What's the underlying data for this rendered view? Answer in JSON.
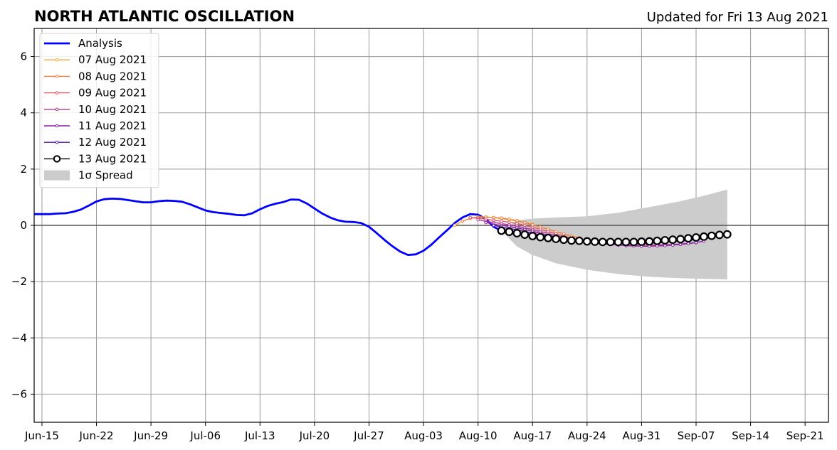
{
  "chart_data": {
    "type": "line",
    "title": "NORTH ATLANTIC OSCILLATION",
    "subtitle": "Updated for Fri 13 Aug 2021",
    "xlabel": "",
    "ylabel": "",
    "x_range": [
      "2021-06-14",
      "2021-09-24"
    ],
    "ylim": [
      -7,
      7
    ],
    "grid": true,
    "legend_position": "top-left",
    "x_ticks": [
      {
        "date": "2021-06-15",
        "label": "Jun-15"
      },
      {
        "date": "2021-06-22",
        "label": "Jun-22"
      },
      {
        "date": "2021-06-29",
        "label": "Jun-29"
      },
      {
        "date": "2021-07-06",
        "label": "Jul-06"
      },
      {
        "date": "2021-07-13",
        "label": "Jul-13"
      },
      {
        "date": "2021-07-20",
        "label": "Jul-20"
      },
      {
        "date": "2021-07-27",
        "label": "Jul-27"
      },
      {
        "date": "2021-08-03",
        "label": "Aug-03"
      },
      {
        "date": "2021-08-10",
        "label": "Aug-10"
      },
      {
        "date": "2021-08-17",
        "label": "Aug-17"
      },
      {
        "date": "2021-08-24",
        "label": "Aug-24"
      },
      {
        "date": "2021-08-31",
        "label": "Aug-31"
      },
      {
        "date": "2021-09-07",
        "label": "Sep-07"
      },
      {
        "date": "2021-09-14",
        "label": "Sep-14"
      },
      {
        "date": "2021-09-21",
        "label": "Sep-21"
      }
    ],
    "y_ticks": [
      {
        "value": -6,
        "label": "−6"
      },
      {
        "value": -4,
        "label": "−4"
      },
      {
        "value": -2,
        "label": "−2"
      },
      {
        "value": 0,
        "label": "0"
      },
      {
        "value": 2,
        "label": "2"
      },
      {
        "value": 4,
        "label": "4"
      },
      {
        "value": 6,
        "label": "6"
      }
    ],
    "series": [
      {
        "name": "Analysis",
        "color": "#0000ff",
        "points": [
          [
            "2021-06-14",
            0.4
          ],
          [
            "2021-06-15",
            0.4
          ],
          [
            "2021-06-16",
            0.4
          ],
          [
            "2021-06-17",
            0.42
          ],
          [
            "2021-06-18",
            0.43
          ],
          [
            "2021-06-19",
            0.48
          ],
          [
            "2021-06-20",
            0.56
          ],
          [
            "2021-06-21",
            0.7
          ],
          [
            "2021-06-22",
            0.85
          ],
          [
            "2021-06-23",
            0.93
          ],
          [
            "2021-06-24",
            0.95
          ],
          [
            "2021-06-25",
            0.94
          ],
          [
            "2021-06-26",
            0.9
          ],
          [
            "2021-06-27",
            0.86
          ],
          [
            "2021-06-28",
            0.82
          ],
          [
            "2021-06-29",
            0.82
          ],
          [
            "2021-06-30",
            0.86
          ],
          [
            "2021-07-01",
            0.88
          ],
          [
            "2021-07-02",
            0.87
          ],
          [
            "2021-07-03",
            0.84
          ],
          [
            "2021-07-04",
            0.75
          ],
          [
            "2021-07-05",
            0.64
          ],
          [
            "2021-07-06",
            0.53
          ],
          [
            "2021-07-07",
            0.47
          ],
          [
            "2021-07-08",
            0.44
          ],
          [
            "2021-07-09",
            0.41
          ],
          [
            "2021-07-10",
            0.37
          ],
          [
            "2021-07-11",
            0.36
          ],
          [
            "2021-07-12",
            0.43
          ],
          [
            "2021-07-13",
            0.57
          ],
          [
            "2021-07-14",
            0.69
          ],
          [
            "2021-07-15",
            0.77
          ],
          [
            "2021-07-16",
            0.83
          ],
          [
            "2021-07-17",
            0.92
          ],
          [
            "2021-07-18",
            0.91
          ],
          [
            "2021-07-19",
            0.78
          ],
          [
            "2021-07-20",
            0.6
          ],
          [
            "2021-07-21",
            0.42
          ],
          [
            "2021-07-22",
            0.28
          ],
          [
            "2021-07-23",
            0.18
          ],
          [
            "2021-07-24",
            0.13
          ],
          [
            "2021-07-25",
            0.12
          ],
          [
            "2021-07-26",
            0.08
          ],
          [
            "2021-07-27",
            -0.05
          ],
          [
            "2021-07-28",
            -0.28
          ],
          [
            "2021-07-29",
            -0.52
          ],
          [
            "2021-07-30",
            -0.74
          ],
          [
            "2021-07-31",
            -0.93
          ],
          [
            "2021-08-01",
            -1.05
          ],
          [
            "2021-08-02",
            -1.03
          ],
          [
            "2021-08-03",
            -0.9
          ],
          [
            "2021-08-04",
            -0.69
          ],
          [
            "2021-08-05",
            -0.43
          ],
          [
            "2021-08-06",
            -0.18
          ],
          [
            "2021-08-07",
            0.08
          ],
          [
            "2021-08-08",
            0.28
          ],
          [
            "2021-08-09",
            0.4
          ],
          [
            "2021-08-10",
            0.38
          ],
          [
            "2021-08-11",
            0.23
          ],
          [
            "2021-08-12",
            -0.05
          ],
          [
            "2021-08-13",
            -0.19
          ]
        ]
      },
      {
        "name": "07 Aug 2021",
        "color": "#f8a83a",
        "points": [
          [
            "2021-08-07",
            0.0
          ],
          [
            "2021-08-08",
            0.15
          ],
          [
            "2021-08-09",
            0.25
          ],
          [
            "2021-08-10",
            0.3
          ],
          [
            "2021-08-11",
            0.3
          ],
          [
            "2021-08-12",
            0.27
          ],
          [
            "2021-08-13",
            0.24
          ],
          [
            "2021-08-14",
            0.2
          ],
          [
            "2021-08-15",
            0.15
          ],
          [
            "2021-08-16",
            0.1
          ],
          [
            "2021-08-17",
            0.05
          ]
        ]
      },
      {
        "name": "08 Aug 2021",
        "color": "#f07f3e",
        "points": [
          [
            "2021-08-08",
            0.15
          ],
          [
            "2021-08-09",
            0.25
          ],
          [
            "2021-08-10",
            0.28
          ],
          [
            "2021-08-11",
            0.29
          ],
          [
            "2021-08-12",
            0.28
          ],
          [
            "2021-08-13",
            0.26
          ],
          [
            "2021-08-14",
            0.22
          ],
          [
            "2021-08-15",
            0.17
          ],
          [
            "2021-08-16",
            0.1
          ],
          [
            "2021-08-17",
            0.02
          ],
          [
            "2021-08-18",
            -0.06
          ],
          [
            "2021-08-19",
            -0.14
          ],
          [
            "2021-08-20",
            -0.22
          ],
          [
            "2021-08-21",
            -0.3
          ],
          [
            "2021-08-22",
            -0.38
          ],
          [
            "2021-08-23",
            -0.44
          ]
        ]
      },
      {
        "name": "09 Aug 2021",
        "color": "#de5668",
        "points": [
          [
            "2021-08-09",
            0.28
          ],
          [
            "2021-08-10",
            0.25
          ],
          [
            "2021-08-11",
            0.22
          ],
          [
            "2021-08-12",
            0.18
          ],
          [
            "2021-08-13",
            0.15
          ],
          [
            "2021-08-14",
            0.11
          ],
          [
            "2021-08-15",
            0.06
          ],
          [
            "2021-08-16",
            0.0
          ],
          [
            "2021-08-17",
            -0.07
          ],
          [
            "2021-08-18",
            -0.14
          ],
          [
            "2021-08-19",
            -0.22
          ],
          [
            "2021-08-20",
            -0.3
          ],
          [
            "2021-08-21",
            -0.38
          ],
          [
            "2021-08-22",
            -0.45
          ],
          [
            "2021-08-23",
            -0.52
          ],
          [
            "2021-08-24",
            -0.57
          ],
          [
            "2021-08-25",
            -0.6
          ]
        ]
      },
      {
        "name": "10 Aug 2021",
        "color": "#b5368c",
        "points": [
          [
            "2021-08-10",
            0.2
          ],
          [
            "2021-08-11",
            0.14
          ],
          [
            "2021-08-12",
            0.1
          ],
          [
            "2021-08-13",
            0.06
          ],
          [
            "2021-08-14",
            0.02
          ],
          [
            "2021-08-15",
            -0.03
          ],
          [
            "2021-08-16",
            -0.09
          ],
          [
            "2021-08-17",
            -0.15
          ],
          [
            "2021-08-18",
            -0.22
          ],
          [
            "2021-08-19",
            -0.29
          ],
          [
            "2021-08-20",
            -0.36
          ],
          [
            "2021-08-21",
            -0.42
          ],
          [
            "2021-08-22",
            -0.48
          ],
          [
            "2021-08-23",
            -0.53
          ],
          [
            "2021-08-24",
            -0.57
          ],
          [
            "2021-08-25",
            -0.6
          ],
          [
            "2021-08-26",
            -0.63
          ],
          [
            "2021-08-27",
            -0.65
          ],
          [
            "2021-08-28",
            -0.67
          ],
          [
            "2021-08-29",
            -0.68
          ],
          [
            "2021-08-30",
            -0.69
          ],
          [
            "2021-08-31",
            -0.7
          ],
          [
            "2021-09-01",
            -0.7
          ],
          [
            "2021-09-02",
            -0.7
          ],
          [
            "2021-09-03",
            -0.69
          ],
          [
            "2021-09-04",
            -0.68
          ],
          [
            "2021-09-05",
            -0.66
          ],
          [
            "2021-09-06",
            -0.64
          ],
          [
            "2021-09-07",
            -0.62
          ]
        ]
      },
      {
        "name": "11 Aug 2021",
        "color": "#8b1fa8",
        "points": [
          [
            "2021-08-11",
            0.1
          ],
          [
            "2021-08-12",
            0.04
          ],
          [
            "2021-08-13",
            0.0
          ],
          [
            "2021-08-14",
            -0.04
          ],
          [
            "2021-08-15",
            -0.09
          ],
          [
            "2021-08-16",
            -0.15
          ],
          [
            "2021-08-17",
            -0.21
          ],
          [
            "2021-08-18",
            -0.28
          ],
          [
            "2021-08-19",
            -0.35
          ],
          [
            "2021-08-20",
            -0.41
          ],
          [
            "2021-08-21",
            -0.47
          ],
          [
            "2021-08-22",
            -0.52
          ],
          [
            "2021-08-23",
            -0.56
          ],
          [
            "2021-08-24",
            -0.6
          ],
          [
            "2021-08-25",
            -0.63
          ],
          [
            "2021-08-26",
            -0.66
          ],
          [
            "2021-08-27",
            -0.68
          ],
          [
            "2021-08-28",
            -0.7
          ],
          [
            "2021-08-29",
            -0.72
          ],
          [
            "2021-08-30",
            -0.73
          ],
          [
            "2021-08-31",
            -0.74
          ],
          [
            "2021-09-01",
            -0.74
          ],
          [
            "2021-09-02",
            -0.73
          ],
          [
            "2021-09-03",
            -0.72
          ],
          [
            "2021-09-04",
            -0.7
          ],
          [
            "2021-09-05",
            -0.68
          ],
          [
            "2021-09-06",
            -0.65
          ],
          [
            "2021-09-07",
            -0.61
          ],
          [
            "2021-09-08",
            -0.56
          ]
        ]
      },
      {
        "name": "12 Aug 2021",
        "color": "#5a13a8",
        "points": [
          [
            "2021-08-12",
            0.0
          ],
          [
            "2021-08-13",
            -0.06
          ],
          [
            "2021-08-14",
            -0.11
          ],
          [
            "2021-08-15",
            -0.16
          ],
          [
            "2021-08-16",
            -0.22
          ],
          [
            "2021-08-17",
            -0.28
          ],
          [
            "2021-08-18",
            -0.34
          ],
          [
            "2021-08-19",
            -0.39
          ],
          [
            "2021-08-20",
            -0.44
          ],
          [
            "2021-08-21",
            -0.48
          ],
          [
            "2021-08-22",
            -0.52
          ],
          [
            "2021-08-23",
            -0.55
          ],
          [
            "2021-08-24",
            -0.58
          ],
          [
            "2021-08-25",
            -0.6
          ],
          [
            "2021-08-26",
            -0.62
          ],
          [
            "2021-08-27",
            -0.63
          ],
          [
            "2021-08-28",
            -0.64
          ],
          [
            "2021-08-29",
            -0.64
          ],
          [
            "2021-08-30",
            -0.64
          ],
          [
            "2021-08-31",
            -0.64
          ],
          [
            "2021-09-01",
            -0.63
          ],
          [
            "2021-09-02",
            -0.62
          ],
          [
            "2021-09-03",
            -0.6
          ],
          [
            "2021-09-04",
            -0.58
          ],
          [
            "2021-09-05",
            -0.56
          ],
          [
            "2021-09-06",
            -0.53
          ],
          [
            "2021-09-07",
            -0.5
          ],
          [
            "2021-09-08",
            -0.47
          ],
          [
            "2021-09-09",
            -0.43
          ],
          [
            "2021-09-10",
            -0.39
          ]
        ]
      },
      {
        "name": "13 Aug 2021",
        "color": "#000000",
        "points": [
          [
            "2021-08-13",
            -0.19
          ],
          [
            "2021-08-14",
            -0.23
          ],
          [
            "2021-08-15",
            -0.28
          ],
          [
            "2021-08-16",
            -0.33
          ],
          [
            "2021-08-17",
            -0.38
          ],
          [
            "2021-08-18",
            -0.42
          ],
          [
            "2021-08-19",
            -0.45
          ],
          [
            "2021-08-20",
            -0.48
          ],
          [
            "2021-08-21",
            -0.51
          ],
          [
            "2021-08-22",
            -0.54
          ],
          [
            "2021-08-23",
            -0.55
          ],
          [
            "2021-08-24",
            -0.57
          ],
          [
            "2021-08-25",
            -0.58
          ],
          [
            "2021-08-26",
            -0.59
          ],
          [
            "2021-08-27",
            -0.59
          ],
          [
            "2021-08-28",
            -0.59
          ],
          [
            "2021-08-29",
            -0.59
          ],
          [
            "2021-08-30",
            -0.59
          ],
          [
            "2021-08-31",
            -0.58
          ],
          [
            "2021-09-01",
            -0.57
          ],
          [
            "2021-09-02",
            -0.55
          ],
          [
            "2021-09-03",
            -0.53
          ],
          [
            "2021-09-04",
            -0.51
          ],
          [
            "2021-09-05",
            -0.49
          ],
          [
            "2021-09-06",
            -0.46
          ],
          [
            "2021-09-07",
            -0.43
          ],
          [
            "2021-09-08",
            -0.4
          ],
          [
            "2021-09-09",
            -0.37
          ],
          [
            "2021-09-10",
            -0.34
          ],
          [
            "2021-09-11",
            -0.32
          ]
        ]
      }
    ],
    "spread": {
      "name": "1σ Spread",
      "color": "#cccccc",
      "upper": [
        [
          "2021-08-13",
          -0.19
        ],
        [
          "2021-08-15",
          0.18
        ],
        [
          "2021-08-17",
          0.24
        ],
        [
          "2021-08-20",
          0.28
        ],
        [
          "2021-08-24",
          0.32
        ],
        [
          "2021-08-28",
          0.45
        ],
        [
          "2021-09-01",
          0.65
        ],
        [
          "2021-09-05",
          0.86
        ],
        [
          "2021-09-08",
          1.05
        ],
        [
          "2021-09-11",
          1.27
        ]
      ],
      "lower": [
        [
          "2021-08-13",
          -0.19
        ],
        [
          "2021-08-15",
          -0.75
        ],
        [
          "2021-08-17",
          -1.05
        ],
        [
          "2021-08-20",
          -1.35
        ],
        [
          "2021-08-24",
          -1.58
        ],
        [
          "2021-08-28",
          -1.73
        ],
        [
          "2021-09-01",
          -1.83
        ],
        [
          "2021-09-05",
          -1.88
        ],
        [
          "2021-09-08",
          -1.9
        ],
        [
          "2021-09-11",
          -1.92
        ]
      ]
    }
  }
}
